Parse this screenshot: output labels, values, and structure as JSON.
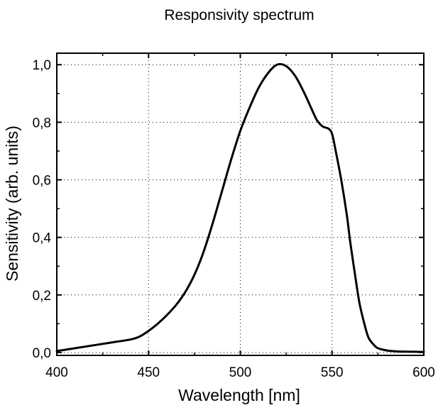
{
  "chart_data": {
    "type": "line",
    "title": "Responsivity spectrum",
    "xlabel": "Wavelength [nm]",
    "ylabel": "Sensitivity (arb. units)",
    "xlim": [
      400,
      600
    ],
    "ylim": [
      -0.01,
      1.04
    ],
    "x_ticks": [
      400,
      450,
      500,
      550,
      600
    ],
    "x_tick_labels": [
      "400",
      "450",
      "500",
      "550",
      "600"
    ],
    "y_ticks": [
      0.0,
      0.2,
      0.4,
      0.6,
      0.8,
      1.0
    ],
    "y_tick_labels": [
      "0,0",
      "0,2",
      "0,4",
      "0,6",
      "0,8",
      "1,0"
    ],
    "grid": true,
    "grid_style": "dotted",
    "line_color": "#000000",
    "series": [
      {
        "x": [
          400,
          410,
          420,
          430,
          440,
          445,
          450,
          455,
          460,
          465,
          470,
          475,
          480,
          485,
          490,
          495,
          500,
          505,
          510,
          515,
          520,
          525,
          530,
          535,
          540,
          542,
          545,
          548,
          550,
          552,
          555,
          558,
          560,
          563,
          565,
          568,
          570,
          573,
          575,
          580,
          585,
          590,
          600
        ],
        "y": [
          0.005,
          0.015,
          0.025,
          0.035,
          0.045,
          0.055,
          0.075,
          0.1,
          0.13,
          0.165,
          0.21,
          0.27,
          0.35,
          0.45,
          0.56,
          0.67,
          0.77,
          0.85,
          0.92,
          0.97,
          1.0,
          0.995,
          0.96,
          0.9,
          0.83,
          0.805,
          0.785,
          0.778,
          0.76,
          0.7,
          0.6,
          0.48,
          0.38,
          0.25,
          0.17,
          0.09,
          0.05,
          0.025,
          0.015,
          0.007,
          0.004,
          0.003,
          0.002
        ]
      }
    ]
  }
}
